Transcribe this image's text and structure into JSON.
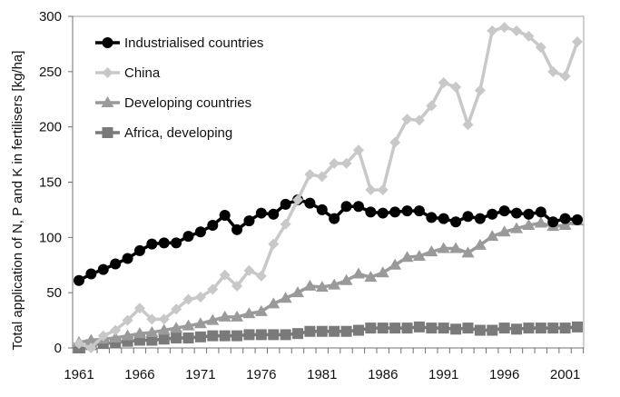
{
  "chart_data": {
    "type": "line",
    "title": "",
    "xlabel": "",
    "ylabel": "Total application of N, P and K in fertilisers [kg/ha]",
    "ylim": [
      0,
      300
    ],
    "yticks": [
      "0",
      "50",
      "100",
      "150",
      "200",
      "250",
      "300"
    ],
    "xlim": [
      1961,
      2002
    ],
    "xtick_labels": [
      "1961",
      "1966",
      "1971",
      "1976",
      "1981",
      "1986",
      "1991",
      "1996",
      "2001"
    ],
    "grid": false,
    "legend_position": "top-left",
    "x": [
      1961,
      1962,
      1963,
      1964,
      1965,
      1966,
      1967,
      1968,
      1969,
      1970,
      1971,
      1972,
      1973,
      1974,
      1975,
      1976,
      1977,
      1978,
      1979,
      1980,
      1981,
      1982,
      1983,
      1984,
      1985,
      1986,
      1987,
      1988,
      1989,
      1990,
      1991,
      1992,
      1993,
      1994,
      1995,
      1996,
      1997,
      1998,
      1999,
      2000,
      2001,
      2002
    ],
    "series": [
      {
        "name": "Industrialised countries",
        "color": "#000000",
        "marker": "circle",
        "values": [
          61,
          67,
          71,
          76,
          81,
          88,
          94,
          95,
          95,
          101,
          105,
          111,
          120,
          107,
          115,
          122,
          121,
          130,
          134,
          131,
          125,
          117,
          128,
          128,
          123,
          122,
          123,
          124,
          124,
          118,
          117,
          114,
          119,
          117,
          121,
          124,
          122,
          121,
          123,
          114,
          117,
          116
        ]
      },
      {
        "name": "China",
        "color": "#c8c8c8",
        "marker": "diamond",
        "values": [
          4,
          0,
          11,
          16,
          25,
          36,
          26,
          26,
          35,
          44,
          46,
          53,
          66,
          56,
          70,
          65,
          94,
          112,
          134,
          157,
          155,
          167,
          167,
          179,
          143,
          143,
          186,
          207,
          206,
          219,
          240,
          236,
          202,
          233,
          287,
          290,
          287,
          282,
          272,
          250,
          246,
          277
        ]
      },
      {
        "name": "Developing countries",
        "color": "#9a9a9a",
        "marker": "triangle",
        "values": [
          5,
          7,
          8,
          9,
          11,
          13,
          14,
          16,
          18,
          20,
          22,
          25,
          28,
          28,
          31,
          33,
          40,
          45,
          50,
          56,
          55,
          57,
          61,
          67,
          64,
          68,
          75,
          82,
          83,
          87,
          90,
          90,
          86,
          93,
          101,
          105,
          108,
          111,
          113,
          110,
          111,
          115
        ]
      },
      {
        "name": "Africa, developing",
        "color": "#7a7a7a",
        "marker": "square",
        "values": [
          0,
          3,
          4,
          5,
          6,
          7,
          7,
          8,
          9,
          9,
          10,
          11,
          11,
          11,
          12,
          12,
          12,
          12,
          13,
          15,
          15,
          15,
          15,
          16,
          18,
          18,
          18,
          18,
          19,
          18,
          18,
          17,
          18,
          16,
          16,
          18,
          17,
          18,
          18,
          18,
          18,
          19
        ]
      }
    ]
  }
}
